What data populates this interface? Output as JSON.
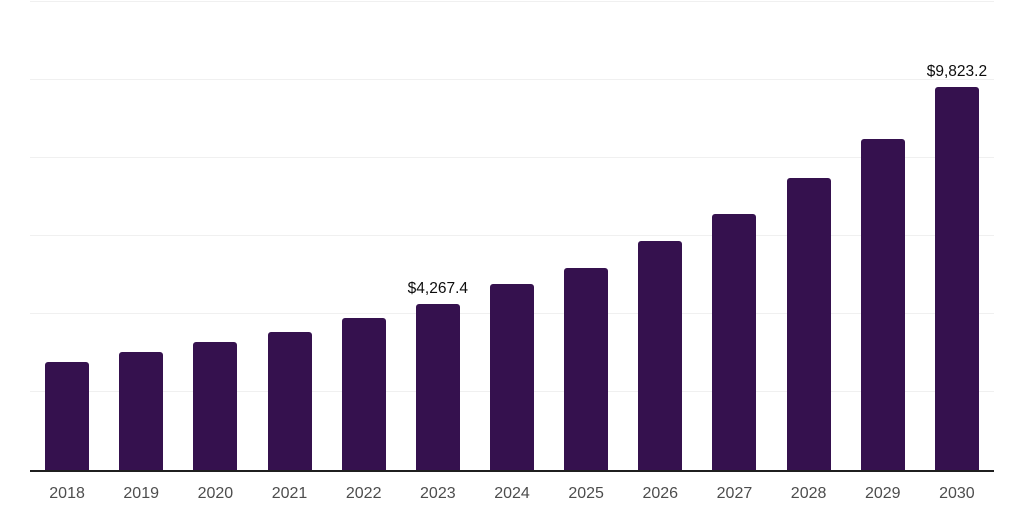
{
  "chart": {
    "background_color": "#ffffff",
    "bar_color": "#35114e",
    "axis_line_color": "#1f1f1f",
    "gridline_color": "#f0f0f0",
    "tick_label_color": "#4d4d4d",
    "value_label_color": "#0d0d0d"
  },
  "chart_data": {
    "type": "bar",
    "title": "",
    "xlabel": "",
    "ylabel": "",
    "categories": [
      "2018",
      "2019",
      "2020",
      "2021",
      "2022",
      "2023",
      "2024",
      "2025",
      "2026",
      "2027",
      "2028",
      "2029",
      "2030"
    ],
    "values": [
      2760,
      3020,
      3270,
      3550,
      3890,
      4267.4,
      4760,
      5190,
      5880,
      6570,
      7490,
      8490,
      9823.2
    ],
    "value_labels": [
      {
        "category": "2023",
        "text": "$4,267.4"
      },
      {
        "category": "2030",
        "text": "$9,823.2"
      }
    ],
    "ylim": [
      0,
      12000
    ],
    "y_grid_step": 2000,
    "grid": "horizontal",
    "y_axis_labels_shown": false,
    "legend": "none"
  }
}
